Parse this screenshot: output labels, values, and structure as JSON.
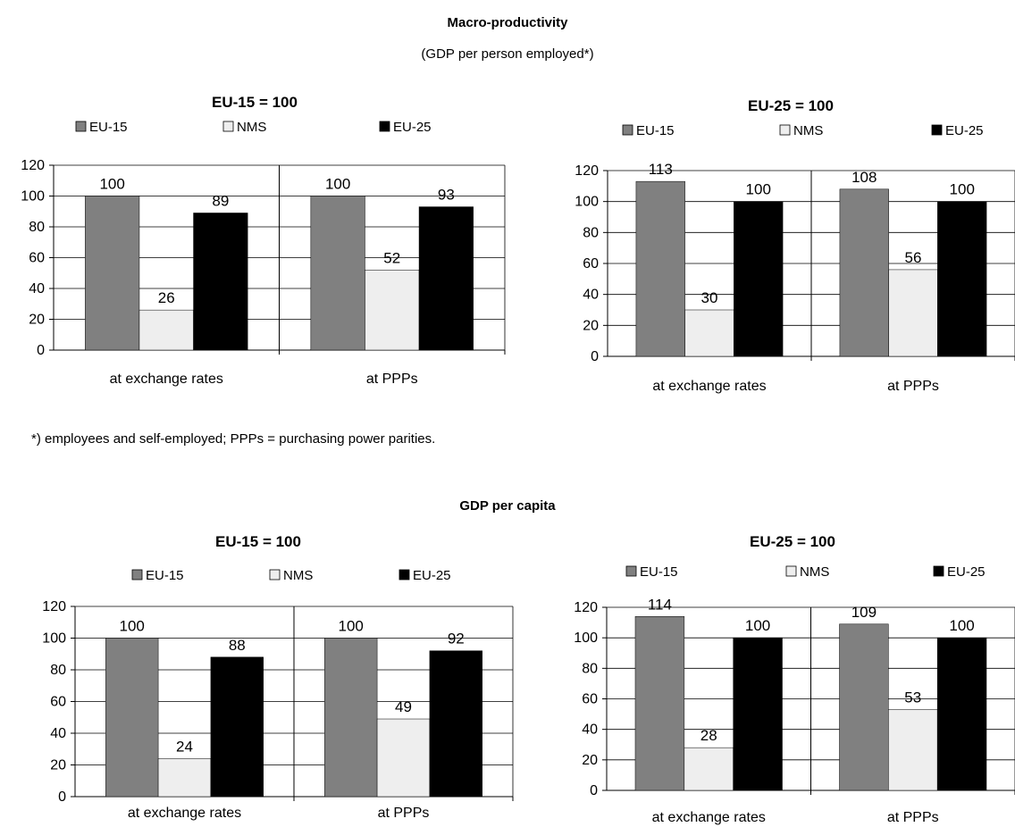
{
  "section1": {
    "title": "Macro-productivity",
    "subtitle": "(GDP per person employed*)"
  },
  "footnote": "*) employees and self-employed; PPPs = purchasing power parities.",
  "section2": {
    "title": "GDP per capita"
  },
  "colors": {
    "EU-15": "#808080",
    "NMS": "#eeeeee",
    "EU-25": "#000000"
  },
  "chart_data": [
    {
      "type": "bar",
      "title": "EU-15 = 100",
      "categories": [
        "at exchange rates",
        "at PPPs"
      ],
      "series": [
        {
          "name": "EU-15",
          "values": [
            100,
            100
          ]
        },
        {
          "name": "NMS",
          "values": [
            26,
            52
          ]
        },
        {
          "name": "EU-25",
          "values": [
            89,
            93
          ]
        }
      ],
      "ylim": [
        0,
        120
      ],
      "yticks": [
        "0",
        "20",
        "40",
        "60",
        "80",
        "100",
        "120"
      ],
      "grid": true,
      "legend": "top"
    },
    {
      "type": "bar",
      "title": "EU-25 = 100",
      "categories": [
        "at exchange rates",
        "at PPPs"
      ],
      "series": [
        {
          "name": "EU-15",
          "values": [
            113,
            108
          ]
        },
        {
          "name": "NMS",
          "values": [
            30,
            56
          ]
        },
        {
          "name": "EU-25",
          "values": [
            100,
            100
          ]
        }
      ],
      "ylim": [
        0,
        120
      ],
      "yticks": [
        "0",
        "20",
        "40",
        "60",
        "80",
        "100",
        "120"
      ],
      "grid": true,
      "legend": "top"
    },
    {
      "type": "bar",
      "title": "EU-15 = 100",
      "categories": [
        "at exchange rates",
        "at PPPs"
      ],
      "series": [
        {
          "name": "EU-15",
          "values": [
            100,
            100
          ]
        },
        {
          "name": "NMS",
          "values": [
            24,
            49
          ]
        },
        {
          "name": "EU-25",
          "values": [
            88,
            92
          ]
        }
      ],
      "ylim": [
        0,
        120
      ],
      "yticks": [
        "0",
        "20",
        "40",
        "60",
        "80",
        "100",
        "120"
      ],
      "grid": true,
      "legend": "top"
    },
    {
      "type": "bar",
      "title": "EU-25 = 100",
      "categories": [
        "at exchange rates",
        "at PPPs"
      ],
      "series": [
        {
          "name": "EU-15",
          "values": [
            114,
            109
          ]
        },
        {
          "name": "NMS",
          "values": [
            28,
            53
          ]
        },
        {
          "name": "EU-25",
          "values": [
            100,
            100
          ]
        }
      ],
      "ylim": [
        0,
        120
      ],
      "yticks": [
        "0",
        "20",
        "40",
        "60",
        "80",
        "100",
        "120"
      ],
      "grid": true,
      "legend": "top"
    }
  ]
}
